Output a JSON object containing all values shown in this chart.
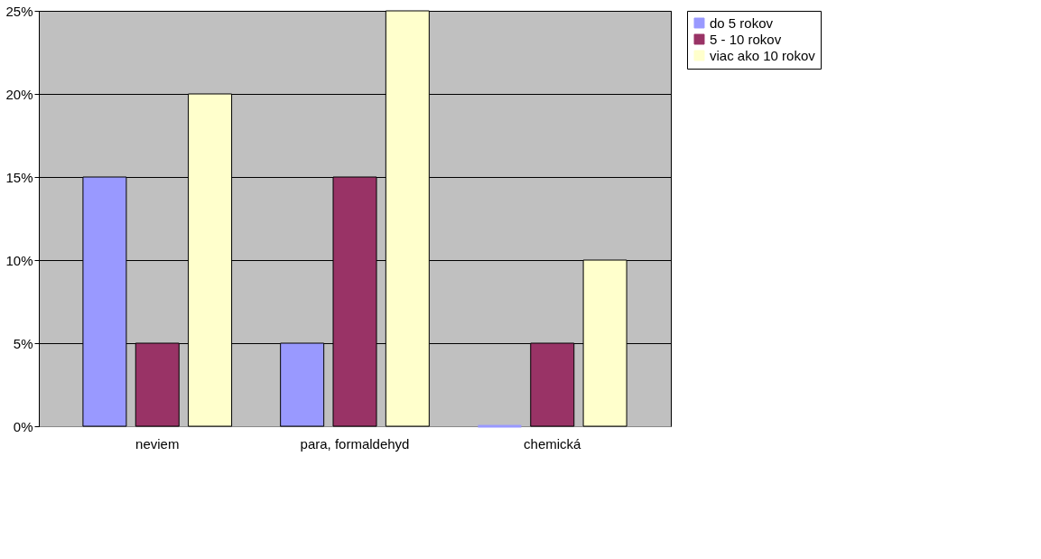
{
  "chart_data": {
    "type": "bar",
    "categories": [
      "neviem",
      "para, formaldehyd",
      "chemická"
    ],
    "series": [
      {
        "name": "do 5 rokov",
        "color": "#9999ff",
        "values": [
          15,
          5,
          0
        ]
      },
      {
        "name": "5 - 10 rokov",
        "color": "#993366",
        "values": [
          5,
          15,
          5
        ]
      },
      {
        "name": "viac ako 10 rokov",
        "color": "#ffffcc",
        "values": [
          20,
          25,
          10
        ]
      }
    ],
    "ylim": [
      0,
      25
    ],
    "yticks": [
      {
        "value": 0,
        "label": "0%"
      },
      {
        "value": 5,
        "label": "5%"
      },
      {
        "value": 10,
        "label": "10%"
      },
      {
        "value": 15,
        "label": "15%"
      },
      {
        "value": 20,
        "label": "20%"
      },
      {
        "value": 25,
        "label": "25%"
      }
    ],
    "grid": "y",
    "legend": "right"
  }
}
